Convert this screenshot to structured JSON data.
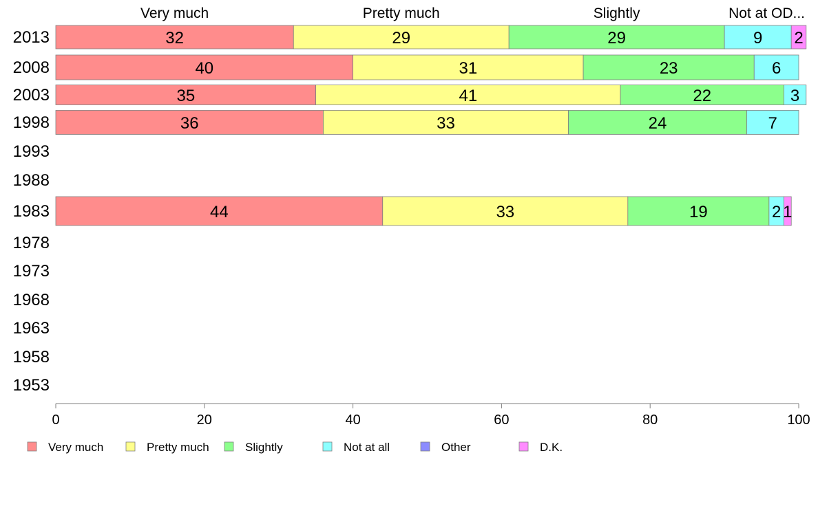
{
  "chart_data": {
    "type": "bar",
    "orientation": "horizontal",
    "stacked": true,
    "categories": [
      "2013",
      "2008",
      "2003",
      "1998",
      "1993",
      "1988",
      "1983",
      "1978",
      "1973",
      "1968",
      "1963",
      "1958",
      "1953"
    ],
    "series": [
      {
        "name": "Very much",
        "color": "#ff8c8c",
        "values": [
          32,
          40,
          35,
          36,
          null,
          null,
          44,
          null,
          null,
          null,
          null,
          null,
          null
        ],
        "labels": [
          "32",
          "40",
          "35",
          "36",
          null,
          null,
          "44",
          null,
          null,
          null,
          null,
          null,
          null
        ]
      },
      {
        "name": "Pretty much",
        "color": "#ffff8c",
        "values": [
          29,
          31,
          41,
          33,
          null,
          null,
          33,
          null,
          null,
          null,
          null,
          null,
          null
        ],
        "labels": [
          "29",
          "31",
          "41",
          "33",
          null,
          null,
          "33",
          null,
          null,
          null,
          null,
          null,
          null
        ]
      },
      {
        "name": "Slightly",
        "color": "#8cff8c",
        "values": [
          29,
          23,
          22,
          24,
          null,
          null,
          19,
          null,
          null,
          null,
          null,
          null,
          null
        ],
        "labels": [
          "29",
          "23",
          "22",
          "24",
          null,
          null,
          "19",
          null,
          null,
          null,
          null,
          null,
          null
        ]
      },
      {
        "name": "Not at all",
        "color": "#8cffff",
        "values": [
          9,
          6,
          3,
          7,
          null,
          null,
          2,
          null,
          null,
          null,
          null,
          null,
          null
        ],
        "labels": [
          "9",
          "6",
          "3",
          "7",
          null,
          null,
          "2",
          null,
          null,
          null,
          null,
          null,
          null
        ]
      },
      {
        "name": "Other",
        "color": "#8c8cff",
        "values": [
          0,
          0,
          0,
          0,
          null,
          null,
          0,
          null,
          null,
          null,
          null,
          null,
          null
        ],
        "labels": [
          null,
          null,
          null,
          null,
          null,
          null,
          null,
          null,
          null,
          null,
          null,
          null,
          null
        ]
      },
      {
        "name": "D.K.",
        "color": "#ff8cff",
        "values": [
          2,
          0,
          0,
          0,
          null,
          null,
          1,
          null,
          null,
          null,
          null,
          null,
          null
        ],
        "labels": [
          "2",
          null,
          null,
          null,
          null,
          null,
          "1",
          null,
          null,
          null,
          null,
          null,
          null
        ]
      }
    ],
    "top_labels": [
      "Very much",
      "Pretty much",
      "Slightly",
      "Not at OD..."
    ],
    "xlim": [
      0,
      100
    ],
    "xticks": [
      "0",
      "20",
      "40",
      "60",
      "80",
      "100"
    ],
    "legend": [
      "Very much",
      "Pretty much",
      "Slightly",
      "Not at all",
      "Other",
      "D.K."
    ],
    "legend_position": "bottom",
    "grid": false
  }
}
